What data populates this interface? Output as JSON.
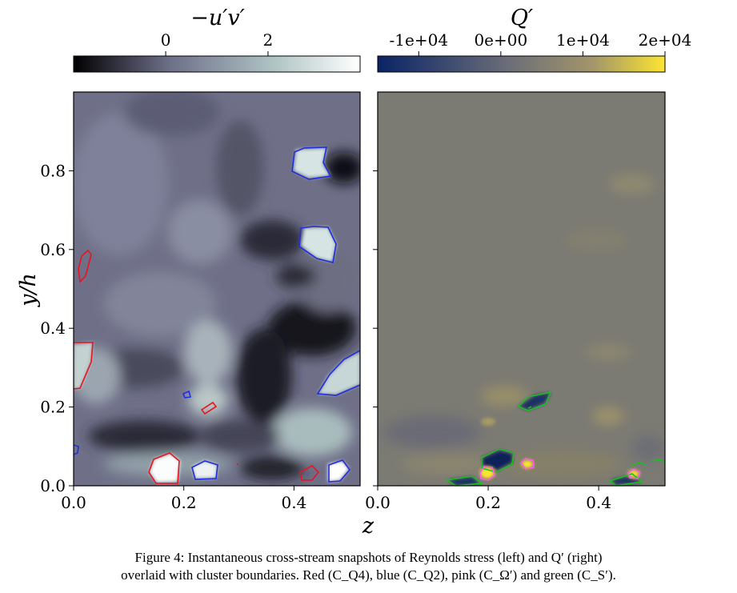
{
  "left_colorbar": {
    "label": "−u′v′",
    "ticks": [
      {
        "value": 0,
        "label": "0"
      },
      {
        "value": 2,
        "label": "2"
      }
    ],
    "range": [
      -1.8,
      3.8
    ],
    "colors": [
      "#000000",
      "#6c6e88",
      "#b0c4c4",
      "#ffffff"
    ]
  },
  "right_colorbar": {
    "label": "Q′",
    "ticks": [
      {
        "value": -10000,
        "label": "-1e+04"
      },
      {
        "value": 0,
        "label": "0e+00"
      },
      {
        "value": 10000,
        "label": "1e+04"
      },
      {
        "value": 20000,
        "label": "2e+04"
      }
    ],
    "range": [
      -15000,
      20000
    ],
    "colors": [
      "#0a2466",
      "#6a6d78",
      "#807d6e",
      "#fce531"
    ]
  },
  "axes": {
    "y_label": "y/h",
    "x_label": "z",
    "y_ticks": [
      {
        "value": 0.0,
        "label": "0.0"
      },
      {
        "value": 0.2,
        "label": "0.2"
      },
      {
        "value": 0.4,
        "label": "0.4"
      },
      {
        "value": 0.6,
        "label": "0.6"
      },
      {
        "value": 0.8,
        "label": "0.8"
      }
    ],
    "x_ticks": [
      {
        "value": 0.0,
        "label": "0.0"
      },
      {
        "value": 0.2,
        "label": "0.2"
      },
      {
        "value": 0.4,
        "label": "0.4"
      }
    ],
    "x_range": [
      0,
      0.52
    ],
    "y_range": [
      0,
      1.0
    ]
  },
  "caption": {
    "line1": "Figure 4: Instantaneous cross-stream snapshots of Reynolds stress (left) and Q′ (right)",
    "line2": "overlaid with cluster boundaries. Red (C_Q4), blue (C_Q2), pink (C_Ω′) and green (C_S′)."
  },
  "contour_colors": {
    "Q4": "#e8141e",
    "Q2": "#1f2ee0",
    "Omega": "#ff5ae6",
    "S": "#17c21f"
  }
}
